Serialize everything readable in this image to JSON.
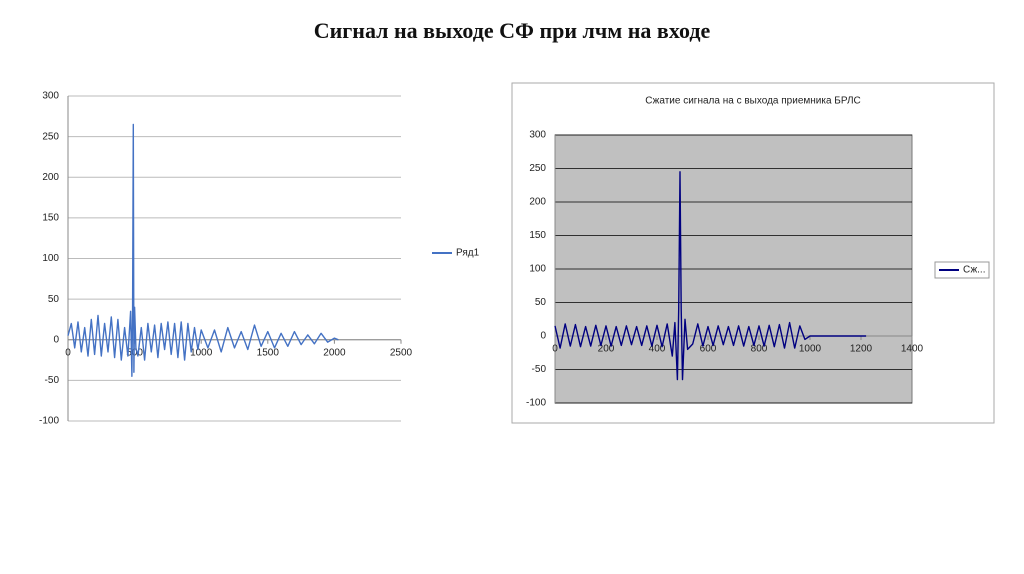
{
  "title": "Сигнал на выходе СФ при лчм на входе",
  "chart_data": [
    {
      "type": "line",
      "x": [
        0,
        25,
        50,
        75,
        100,
        125,
        150,
        175,
        200,
        225,
        250,
        275,
        300,
        325,
        350,
        375,
        400,
        425,
        450,
        470,
        480,
        485,
        490,
        495,
        500,
        510,
        525,
        550,
        575,
        600,
        625,
        650,
        675,
        700,
        725,
        750,
        775,
        800,
        825,
        850,
        875,
        900,
        925,
        950,
        975,
        1000,
        1050,
        1100,
        1150,
        1200,
        1250,
        1300,
        1350,
        1400,
        1450,
        1500,
        1550,
        1600,
        1650,
        1700,
        1750,
        1800,
        1850,
        1900,
        1950,
        2000,
        2030
      ],
      "series": [
        {
          "name": "Ряд1",
          "color": "#4472c4",
          "values": [
            5,
            20,
            -10,
            22,
            -15,
            15,
            -20,
            25,
            -18,
            30,
            -20,
            20,
            -15,
            28,
            -22,
            25,
            -25,
            15,
            -20,
            35,
            -45,
            40,
            265,
            -40,
            40,
            -10,
            -20,
            15,
            -25,
            20,
            -15,
            18,
            -22,
            20,
            -12,
            22,
            -18,
            20,
            -22,
            22,
            -25,
            20,
            -15,
            15,
            -12,
            12,
            -10,
            12,
            -15,
            15,
            -10,
            10,
            -12,
            18,
            -8,
            10,
            -10,
            8,
            -8,
            10,
            -6,
            6,
            -5,
            8,
            -3,
            2,
            0
          ]
        }
      ],
      "xlim": [
        0,
        2500
      ],
      "xticks": [
        0,
        500,
        1000,
        1500,
        2000,
        2500
      ],
      "ylim": [
        -100,
        300
      ],
      "yticks": [
        -100,
        -50,
        0,
        50,
        100,
        150,
        200,
        250,
        300
      ],
      "grid": true,
      "legend": "right"
    },
    {
      "type": "line",
      "title": "Сжатие сигнала на с выхода приемника БРЛС",
      "x": [
        0,
        20,
        40,
        60,
        80,
        100,
        120,
        140,
        160,
        180,
        200,
        220,
        240,
        260,
        280,
        300,
        320,
        340,
        360,
        380,
        400,
        420,
        440,
        460,
        470,
        480,
        485,
        490,
        495,
        500,
        510,
        520,
        540,
        560,
        580,
        600,
        620,
        640,
        660,
        680,
        700,
        720,
        740,
        760,
        780,
        800,
        820,
        840,
        860,
        880,
        900,
        920,
        940,
        960,
        980,
        1000,
        1220
      ],
      "series": [
        {
          "name": "Сж...",
          "color": "#000080",
          "values": [
            15,
            -18,
            18,
            -15,
            17,
            -16,
            14,
            -15,
            16,
            -14,
            15,
            -15,
            14,
            -14,
            15,
            -13,
            14,
            -14,
            15,
            -15,
            16,
            -16,
            18,
            -30,
            20,
            -65,
            40,
            245,
            40,
            -65,
            25,
            -20,
            -12,
            18,
            -15,
            14,
            -14,
            15,
            -13,
            14,
            -14,
            15,
            -15,
            14,
            -14,
            15,
            -15,
            16,
            -16,
            17,
            -18,
            20,
            -18,
            15,
            -5,
            0,
            0
          ]
        }
      ],
      "xlim": [
        0,
        1400
      ],
      "xticks": [
        0,
        200,
        400,
        600,
        800,
        1000,
        1200,
        1400
      ],
      "ylim": [
        -100,
        300
      ],
      "yticks": [
        -100,
        -50,
        0,
        50,
        100,
        150,
        200,
        250,
        300
      ],
      "grid": true,
      "legend": "right",
      "plot_background": "#c0c0c0"
    }
  ]
}
